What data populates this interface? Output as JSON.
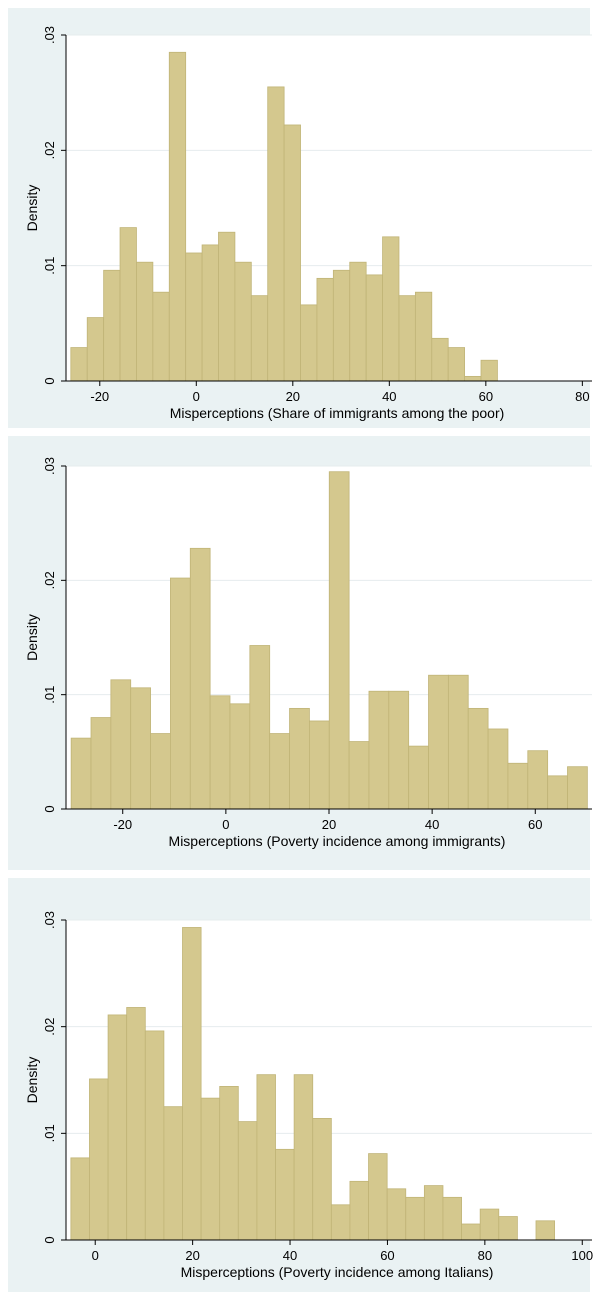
{
  "chart_data": [
    {
      "type": "bar",
      "subtype": "histogram",
      "xlabel": "Misperceptions (Share of immigrants among the poor)",
      "ylabel": "Density",
      "xlim": [
        -27,
        82
      ],
      "ylim": [
        0,
        0.03
      ],
      "xticks": [
        -20,
        0,
        20,
        40,
        60,
        80
      ],
      "xtick_labels": [
        "-20",
        "0",
        "20",
        "40",
        "60",
        "80"
      ],
      "yticks": [
        0,
        0.01,
        0.02,
        0.03
      ],
      "ytick_labels": [
        "0",
        ".01",
        ".02",
        ".03"
      ],
      "grid": true,
      "bar_color": "#d4c88e",
      "bar_edge": "#c0b477",
      "bin_start": -26,
      "bin_width": 3.4,
      "values": [
        0.0029,
        0.0055,
        0.0096,
        0.0133,
        0.0103,
        0.0077,
        0.0285,
        0.0111,
        0.0118,
        0.0129,
        0.0103,
        0.0074,
        0.0255,
        0.0222,
        0.0066,
        0.0089,
        0.0096,
        0.0103,
        0.0092,
        0.0125,
        0.0074,
        0.0077,
        0.0037,
        0.0029,
        0.0004,
        0.0018
      ]
    },
    {
      "type": "bar",
      "subtype": "histogram",
      "xlabel": "Misperceptions (Poverty incidence among immigrants)",
      "ylabel": "Density",
      "xlim": [
        -31,
        71
      ],
      "ylim": [
        0,
        0.03
      ],
      "xticks": [
        -20,
        0,
        20,
        40,
        60
      ],
      "xtick_labels": [
        "-20",
        "0",
        "20",
        "40",
        "60"
      ],
      "yticks": [
        0,
        0.01,
        0.02,
        0.03
      ],
      "ytick_labels": [
        "0",
        ".01",
        ".02",
        ".03"
      ],
      "grid": true,
      "bar_color": "#d4c88e",
      "bar_edge": "#c0b477",
      "bin_start": -30,
      "bin_width": 3.85,
      "values": [
        0.0062,
        0.008,
        0.0113,
        0.0106,
        0.0066,
        0.0202,
        0.0228,
        0.0099,
        0.0092,
        0.0143,
        0.0066,
        0.0088,
        0.0077,
        0.0295,
        0.0059,
        0.0103,
        0.0103,
        0.0055,
        0.0117,
        0.0117,
        0.0088,
        0.007,
        0.004,
        0.0051,
        0.0029,
        0.0037
      ]
    },
    {
      "type": "bar",
      "subtype": "histogram",
      "xlabel": "Misperceptions (Poverty incidence among Italians)",
      "ylabel": "Density",
      "xlim": [
        -6,
        102
      ],
      "ylim": [
        0,
        0.03
      ],
      "xticks": [
        0,
        20,
        40,
        60,
        80,
        100
      ],
      "xtick_labels": [
        "0",
        "20",
        "40",
        "60",
        "80",
        "100"
      ],
      "yticks": [
        0,
        0.01,
        0.02,
        0.03
      ],
      "ytick_labels": [
        "0",
        ".01",
        ".02",
        ".03"
      ],
      "grid": true,
      "bar_color": "#d4c88e",
      "bar_edge": "#c0b477",
      "bin_start": -5,
      "bin_width": 3.82,
      "values": [
        0.0077,
        0.0151,
        0.0211,
        0.0218,
        0.0196,
        0.0125,
        0.0293,
        0.0133,
        0.0144,
        0.0111,
        0.0155,
        0.0085,
        0.0155,
        0.0114,
        0.0033,
        0.0055,
        0.0081,
        0.0048,
        0.004,
        0.0051,
        0.004,
        0.0015,
        0.0029,
        0.0022,
        0,
        0.0018
      ]
    }
  ]
}
